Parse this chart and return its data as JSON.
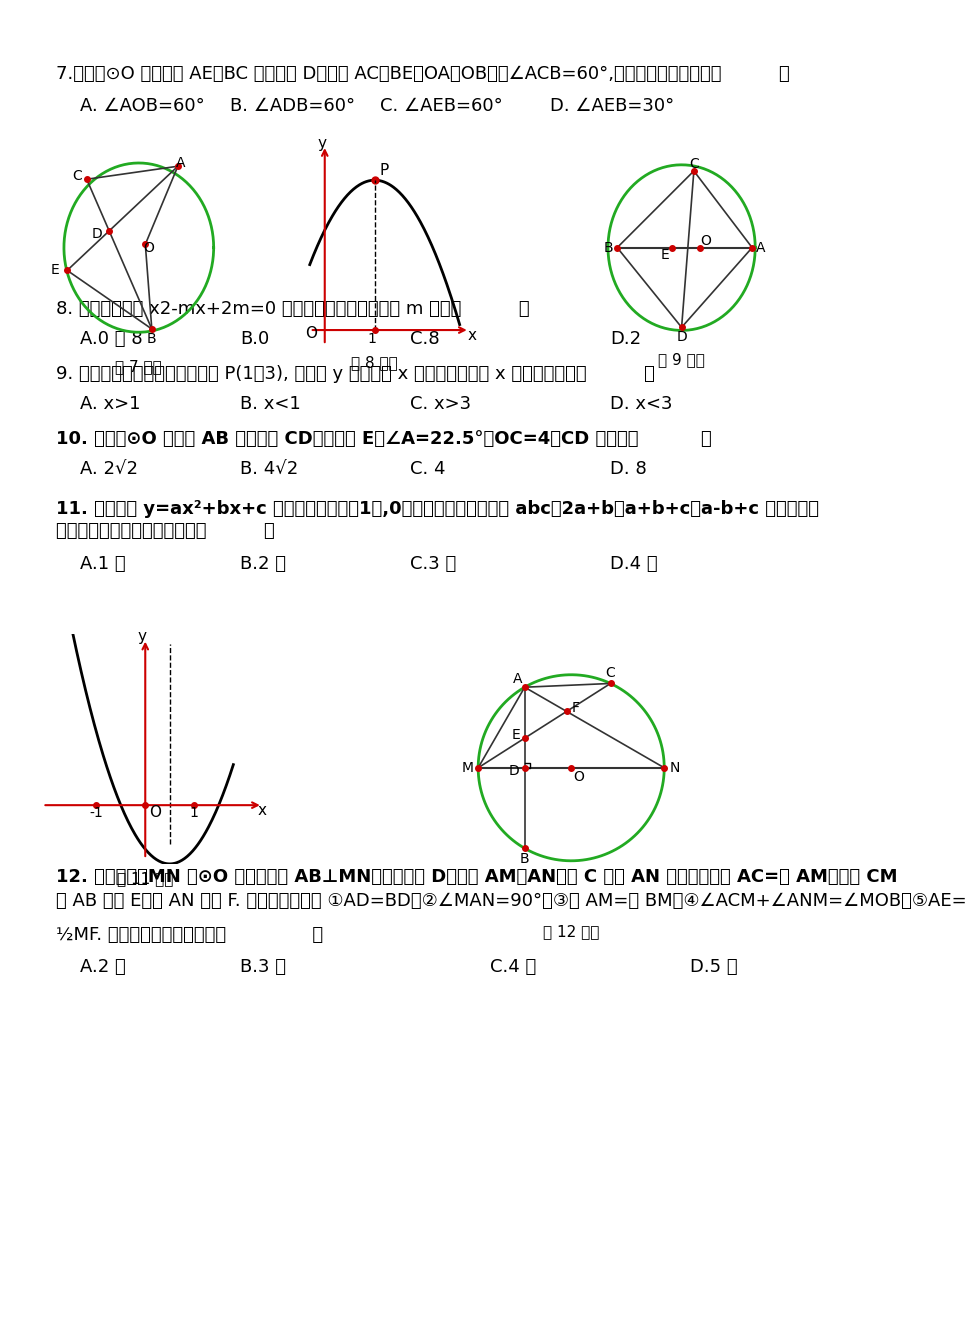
{
  "bg_color": "#ffffff",
  "text_color": "#000000",
  "red_color": "#cc0000",
  "green_color": "#22aa22",
  "line_color": "#333333",
  "q7_text": "7.如图，⊙O 的两条弦 AE、BC 相交于点 D，连接 AC、BE、OA、OB，若∠ACB=60°,则下列结论正确的是（          ）",
  "q7_opts": [
    "A. ∠AOB=60°",
    "B. ∠ADB=60°",
    "C. ∠AEB=60°",
    "D. ∠AEB=30°"
  ],
  "fig7_label": "第 7 题图",
  "fig8_label": "第 8 题图",
  "fig9_label": "第 9 题图",
  "q8_text": "8. 一元二次方程 x2-mx+2m=0 有两个相等的实数根，则 m 等于（          ）",
  "q8_opts": [
    "A.0 或 8",
    "B.0",
    "C.8",
    "D.2"
  ],
  "q9_text": "9. 如图所示，抛物线顶点坐标是 P(1，3), 则函数 y 随自变量 x 的增大而减小的 x 的取值范围是（          ）",
  "q9_opts": [
    "A. x>1",
    "B. x<1",
    "C. x>3",
    "D. x<3"
  ],
  "q10_text": "10. 如图，⊙O 的直径 AB 垂直于弦 CD，垂足是 E，∠A=22.5°，OC=4，CD 的长为（          ）",
  "q10_opts": [
    "A. 2√2",
    "B. 4√2",
    "C. 4",
    "D. 8"
  ],
  "q11_text": "11. 二次函数 y=ax²+bx+c 的图象如图，点（1，,0）在函数图象上，那么 abc、2a+b、a+b+c、a-b+c 这四个代数\n式中，值大于或等于零的数有（          ）",
  "q11_opts": [
    "A.1 个",
    "B.2 个",
    "C.3 个",
    "D.4 个"
  ],
  "fig11_label": "第 11 题图",
  "fig12_label": "第 12 题图",
  "q12_text": "12. 如图所示，MN 是⊙O 的直径，弦 AB⊥MN，垂足为点 D，连接 AM，AN，点 C 为弧 AN 上一点，且弧 AC=弧 AM，连接 CM\n交 AB 于点 E，交 AN 于点 F. 现给出以下结论 ①AD=BD；②∠MAN=90°；③弧 AM=弧 BM；④∠ACM+∠ANM=∠MOB；⑤AE=\n½MF. 其中正确结论的个数是（               ）",
  "q12_opts": [
    "A.2 个",
    "B.3 个",
    "C.4 个",
    "D.5 个"
  ]
}
